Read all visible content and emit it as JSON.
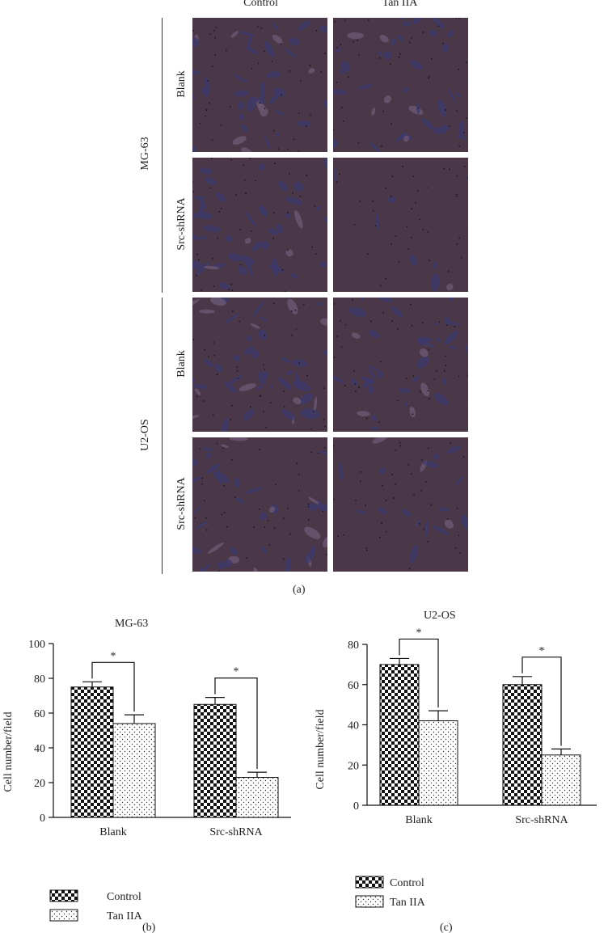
{
  "panel_a": {
    "columns": [
      "Control",
      "Tan IIA"
    ],
    "groups": [
      {
        "name": "MG-63",
        "rows": [
          "Blank",
          "Src-shRNA"
        ]
      },
      {
        "name": "U2-OS",
        "rows": [
          "Blank",
          "Src-shRNA"
        ]
      }
    ],
    "letter": "(a)"
  },
  "colors": {
    "micro_bg": "#4a3848",
    "micro_cell": "#3d3a6e",
    "micro_light": "#6f5a76",
    "bar_dark": "#111111"
  },
  "chart_data": [
    {
      "type": "bar",
      "title": "MG-63",
      "ylabel": "Cell number/field",
      "ylim": [
        0,
        100
      ],
      "yticks": [
        0,
        20,
        40,
        60,
        80,
        100
      ],
      "categories": [
        "Blank",
        "Src-shRNA"
      ],
      "series": [
        {
          "name": "Control",
          "values": [
            75,
            65
          ],
          "errors": [
            3,
            4
          ],
          "pattern": "checker"
        },
        {
          "name": "Tan IIA",
          "values": [
            54,
            23
          ],
          "errors": [
            5,
            3
          ],
          "pattern": "dots"
        }
      ],
      "significance": [
        "*",
        "*"
      ],
      "legend": "bottom-left",
      "letter": "(b)"
    },
    {
      "type": "bar",
      "title": "U2-OS",
      "ylabel": "Cell number/field",
      "ylim": [
        0,
        80
      ],
      "yticks": [
        0,
        20,
        40,
        60,
        80
      ],
      "categories": [
        "Blank",
        "Src-shRNA"
      ],
      "series": [
        {
          "name": "Control",
          "values": [
            70,
            60
          ],
          "errors": [
            3,
            4
          ],
          "pattern": "checker"
        },
        {
          "name": "Tan IIA",
          "values": [
            42,
            25
          ],
          "errors": [
            5,
            3
          ],
          "pattern": "dots"
        }
      ],
      "significance": [
        "*",
        "*"
      ],
      "legend": "bottom-left",
      "letter": "(c)"
    }
  ]
}
